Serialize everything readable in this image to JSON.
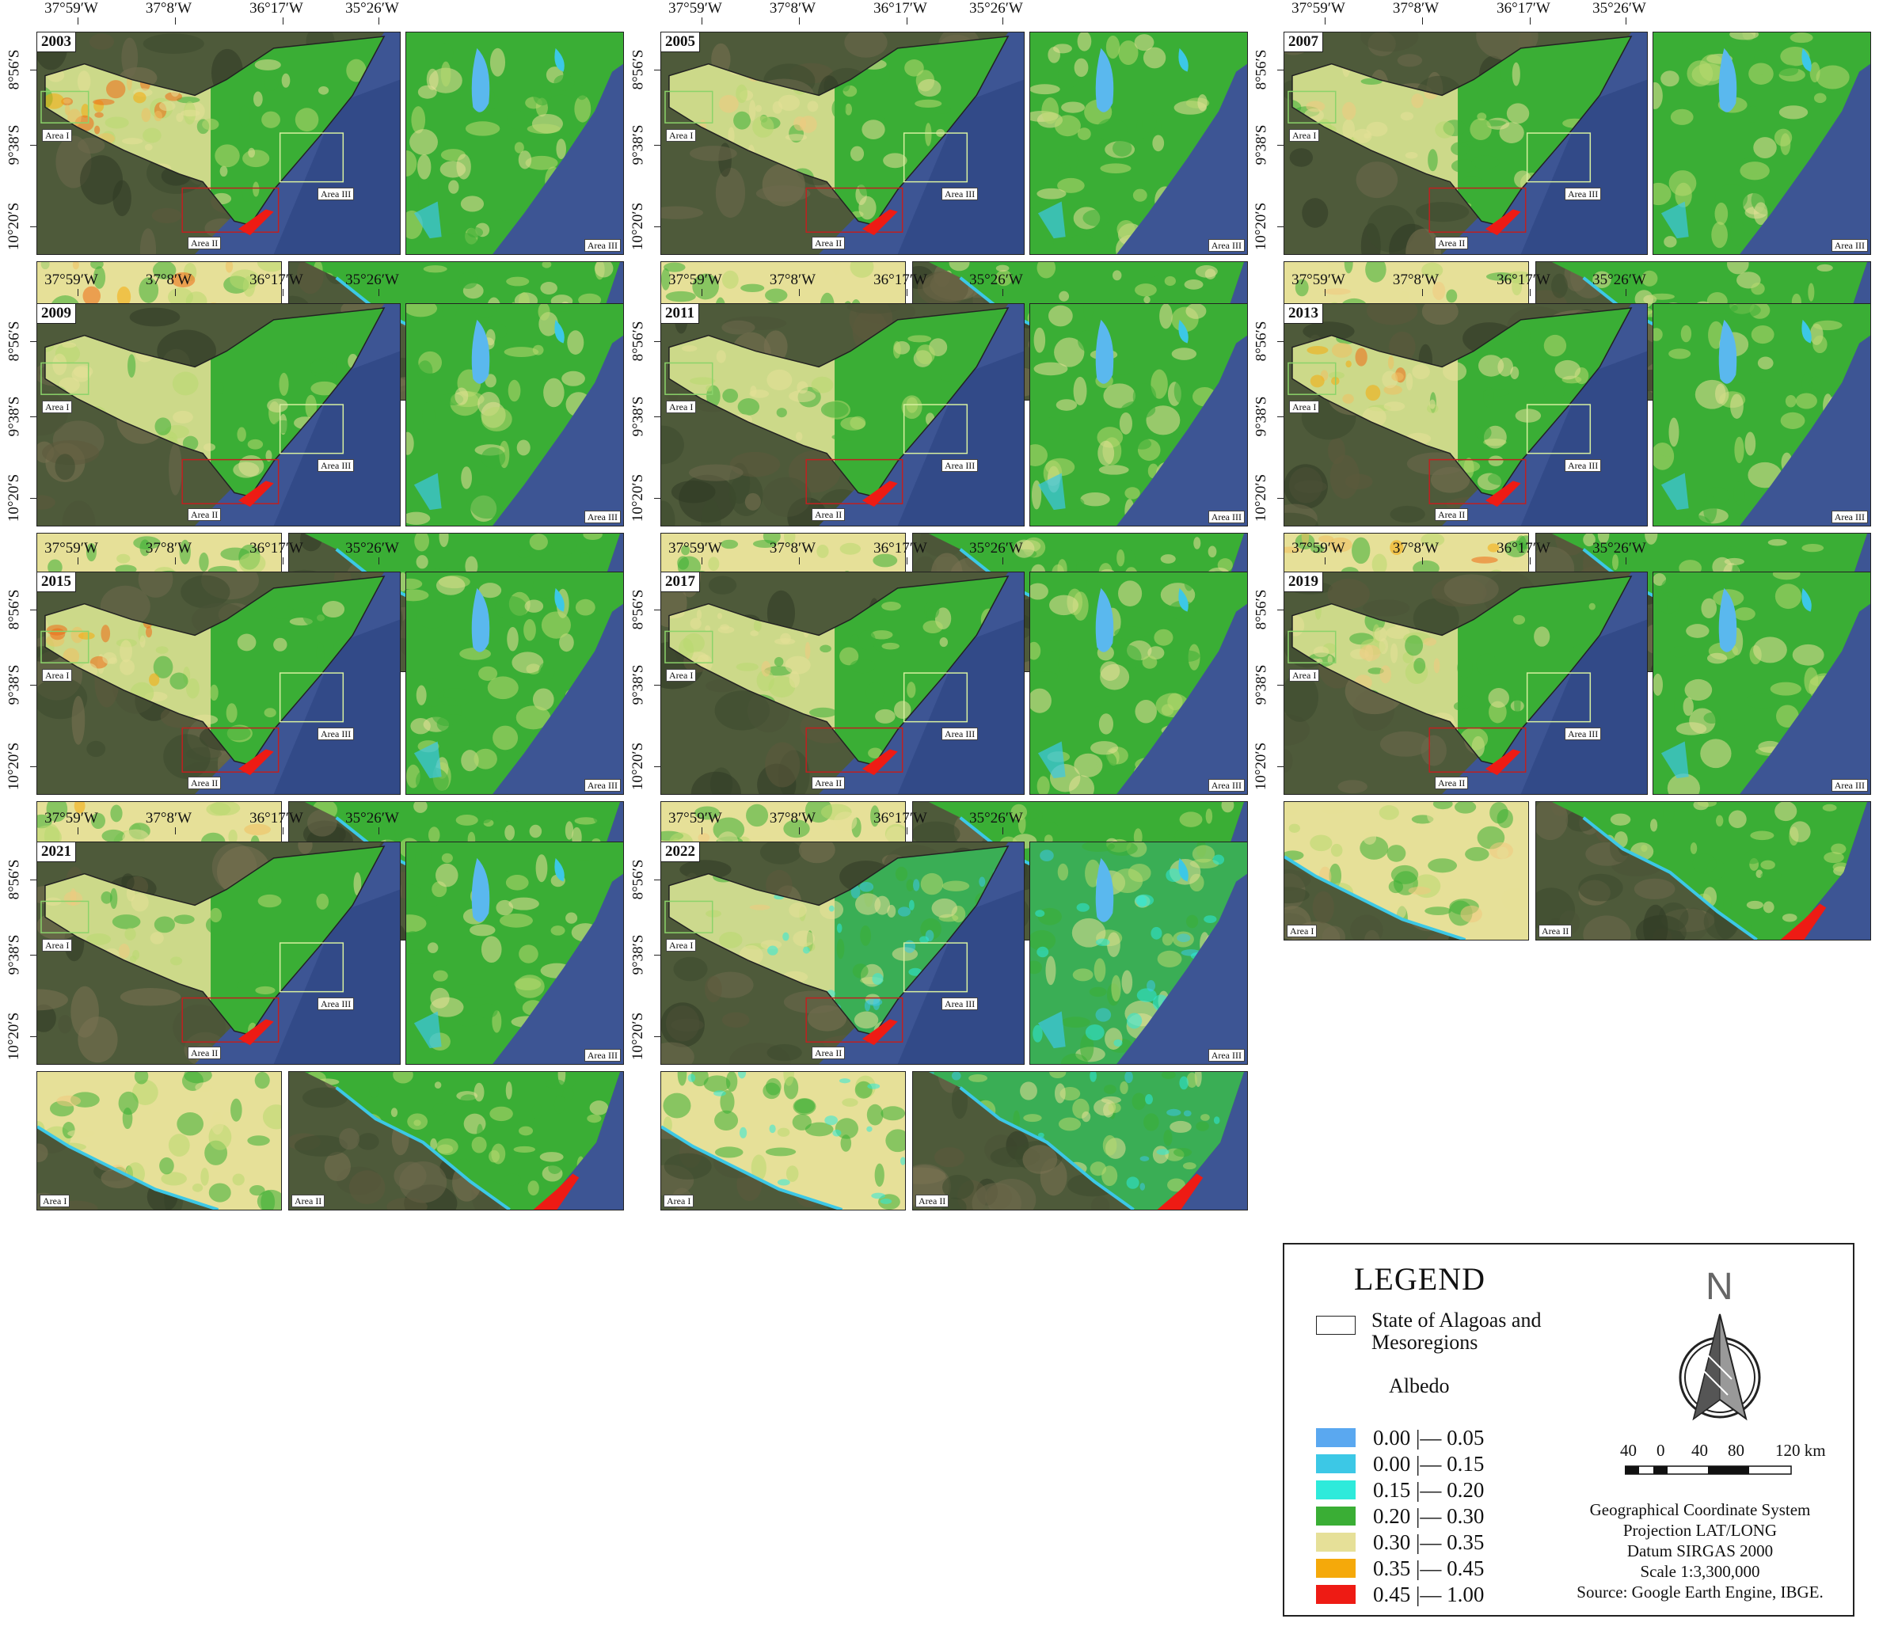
{
  "figure": {
    "coords_top": [
      "37°59′W",
      "37°8′W",
      "36°17′W",
      "35°26′W"
    ],
    "coords_left": [
      "8°56′S",
      "9°38′S",
      "10°20′S"
    ],
    "area_labels": {
      "area1": "Area I",
      "area2": "Area II",
      "area3": "Area III"
    }
  },
  "panels": [
    {
      "year": "2003",
      "hot": 0.9
    },
    {
      "year": "2005",
      "hot": 0.35
    },
    {
      "year": "2007",
      "hot": 0.3
    },
    {
      "year": "2009",
      "hot": 0.15
    },
    {
      "year": "2011",
      "hot": 0.1
    },
    {
      "year": "2013",
      "hot": 0.55
    },
    {
      "year": "2015",
      "hot": 0.6
    },
    {
      "year": "2017",
      "hot": 0.4
    },
    {
      "year": "2019",
      "hot": 0.45
    },
    {
      "year": "2021",
      "hot": 0.2
    },
    {
      "year": "2022",
      "hot": 0.05,
      "cyan": true
    }
  ],
  "legend": {
    "title": "LEGEND",
    "state_label": "State of Alagoas and Mesoregions",
    "albedo_title": "Albedo",
    "classes": [
      {
        "label": "0.00 |— 0.05",
        "color": "#5aa8f0"
      },
      {
        "label": "0.00 |— 0.15",
        "color": "#3cc8e6"
      },
      {
        "label": "0.15 |— 0.20",
        "color": "#2eeadb"
      },
      {
        "label": "0.20 |— 0.30",
        "color": "#3aae35"
      },
      {
        "label": "0.30 |— 0.35",
        "color": "#e6e098"
      },
      {
        "label": "0.35 |— 0.45",
        "color": "#f5a90a"
      },
      {
        "label": "0.45 |— 1.00",
        "color": "#ee1b14"
      }
    ],
    "north": "N",
    "scale_labels": [
      "40",
      "0",
      "40",
      "80",
      "120 km"
    ],
    "info": [
      "Geographical Coordinate System",
      "Projection LAT/LONG",
      "Datum SIRGAS 2000",
      "Scale 1:3,300,000",
      "Source: Google Earth Engine, IBGE."
    ]
  }
}
